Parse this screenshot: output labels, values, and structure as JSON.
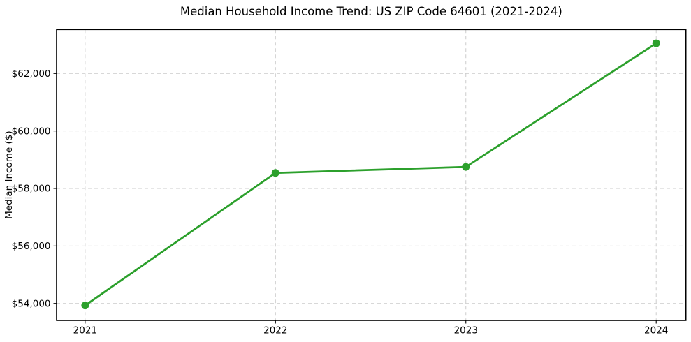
{
  "figure": {
    "background": "#ffffff"
  },
  "colors": {
    "line": "#2ca02c",
    "marker": "#2ca02c",
    "grid": "#cccccc",
    "spine": "#000000",
    "text": "#000000",
    "background": "#ffffff"
  },
  "chart_data": {
    "type": "line",
    "title": "Median Household Income Trend: US ZIP Code 64601 (2021-2024)",
    "xlabel": "",
    "ylabel": "Median Income ($)",
    "x": [
      2021,
      2022,
      2023,
      2024
    ],
    "series": [
      {
        "name": "Median Household Income",
        "values": [
          53930,
          58540,
          58750,
          63050
        ]
      }
    ],
    "xticks": [
      2021,
      2022,
      2023,
      2024
    ],
    "xtick_labels": [
      "2021",
      "2022",
      "2023",
      "2024"
    ],
    "yticks": [
      54000,
      56000,
      58000,
      60000,
      62000
    ],
    "ytick_labels": [
      "$54,000",
      "$56,000",
      "$58,000",
      "$60,000",
      "$62,000"
    ],
    "xlim": [
      2020.85,
      2024.156
    ],
    "ylim": [
      53410,
      63530
    ],
    "grid": true,
    "grid_style": "dashed",
    "legend": "none",
    "marker": "circle",
    "line_width": 2.8,
    "marker_radius": 5.5
  }
}
